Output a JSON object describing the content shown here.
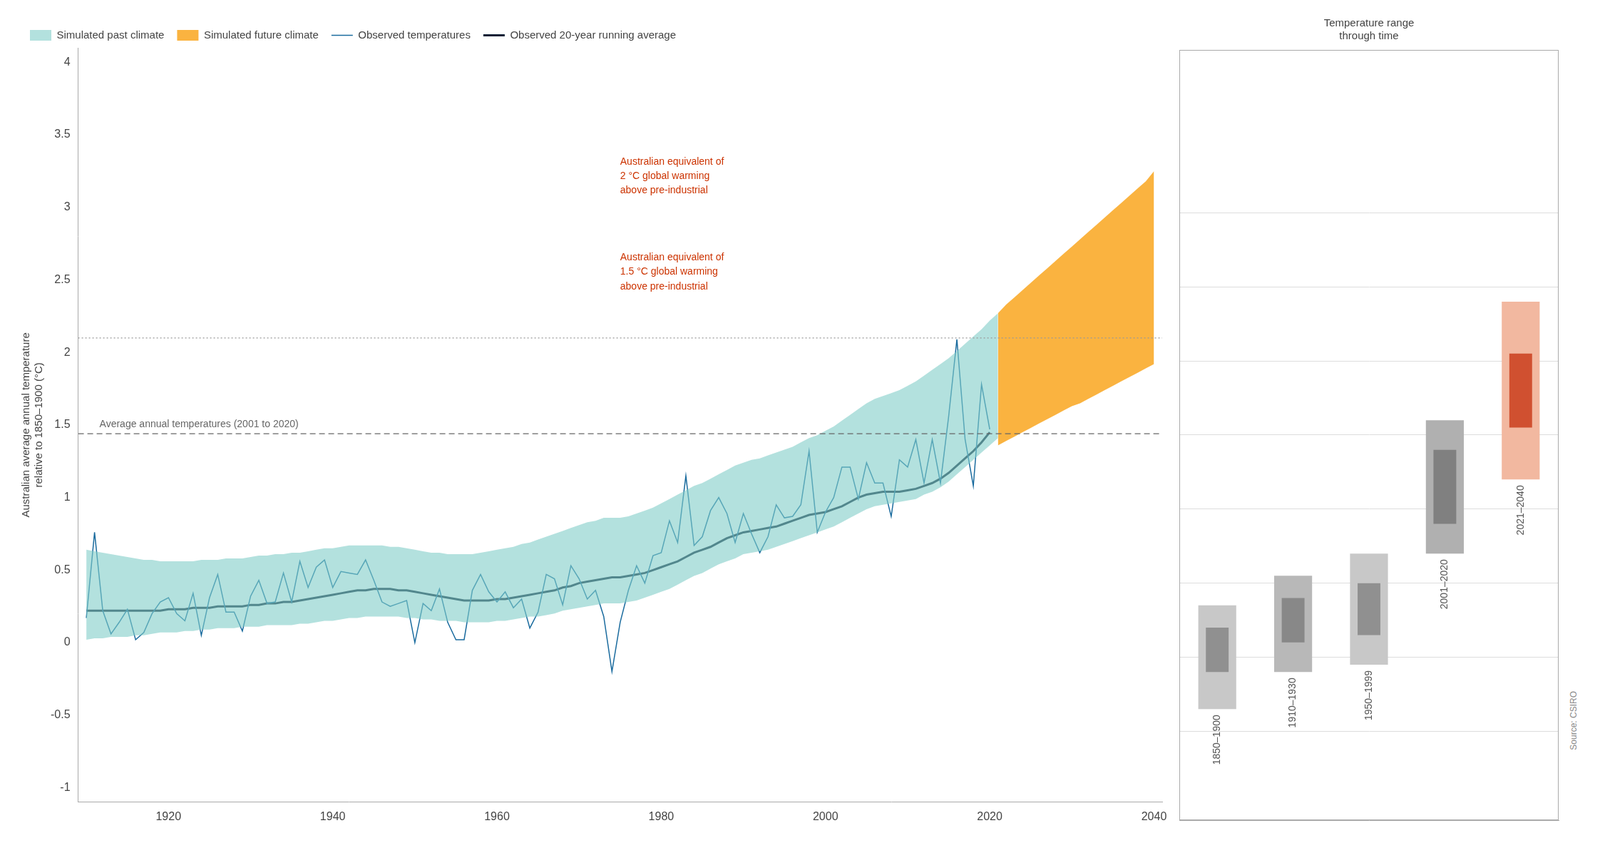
{
  "chart_data": [
    {
      "type": "line",
      "ylabel": "Australian average annual temperature\nrelative to 1850–1900 (°C)",
      "xlim": [
        1909,
        2041
      ],
      "ylim": [
        -1.1,
        4.1
      ],
      "xticks": [
        1920,
        1940,
        1960,
        1980,
        2000,
        2020,
        2040
      ],
      "yticks": [
        -1,
        -0.5,
        0,
        0.5,
        1,
        1.5,
        2,
        2.5,
        3,
        3.5,
        4
      ],
      "grid": false,
      "legend": "upper left",
      "series": [
        {
          "name": "Simulated past climate",
          "type": "area",
          "color": "#80cdc8",
          "x": [
            1910,
            1911,
            1912,
            1913,
            1914,
            1915,
            1916,
            1917,
            1918,
            1919,
            1920,
            1921,
            1922,
            1923,
            1924,
            1925,
            1926,
            1927,
            1928,
            1929,
            1930,
            1931,
            1932,
            1933,
            1934,
            1935,
            1936,
            1937,
            1938,
            1939,
            1940,
            1941,
            1942,
            1943,
            1944,
            1945,
            1946,
            1947,
            1948,
            1949,
            1950,
            1951,
            1952,
            1953,
            1954,
            1955,
            1956,
            1957,
            1958,
            1959,
            1960,
            1961,
            1962,
            1963,
            1964,
            1965,
            1966,
            1967,
            1968,
            1969,
            1970,
            1971,
            1972,
            1973,
            1974,
            1975,
            1976,
            1977,
            1978,
            1979,
            1980,
            1981,
            1982,
            1983,
            1984,
            1985,
            1986,
            1987,
            1988,
            1989,
            1990,
            1991,
            1992,
            1993,
            1994,
            1995,
            1996,
            1997,
            1998,
            1999,
            2000,
            2001,
            2002,
            2003,
            2004,
            2005,
            2006,
            2007,
            2008,
            2009,
            2010,
            2011,
            2012,
            2013,
            2014,
            2015,
            2016,
            2017,
            2018,
            2019,
            2020,
            2021
          ],
          "low": [
            0.02,
            0.03,
            0.03,
            0.04,
            0.04,
            0.04,
            0.05,
            0.05,
            0.06,
            0.07,
            0.07,
            0.07,
            0.08,
            0.08,
            0.09,
            0.09,
            0.1,
            0.1,
            0.1,
            0.11,
            0.11,
            0.11,
            0.12,
            0.12,
            0.12,
            0.12,
            0.13,
            0.13,
            0.14,
            0.15,
            0.15,
            0.16,
            0.17,
            0.17,
            0.18,
            0.18,
            0.18,
            0.18,
            0.18,
            0.17,
            0.17,
            0.16,
            0.16,
            0.15,
            0.15,
            0.15,
            0.14,
            0.14,
            0.14,
            0.14,
            0.15,
            0.15,
            0.16,
            0.17,
            0.18,
            0.18,
            0.19,
            0.2,
            0.22,
            0.23,
            0.24,
            0.25,
            0.26,
            0.27,
            0.27,
            0.27,
            0.28,
            0.29,
            0.31,
            0.33,
            0.35,
            0.37,
            0.4,
            0.43,
            0.46,
            0.48,
            0.51,
            0.54,
            0.56,
            0.58,
            0.61,
            0.62,
            0.63,
            0.64,
            0.66,
            0.68,
            0.7,
            0.72,
            0.74,
            0.76,
            0.78,
            0.8,
            0.83,
            0.86,
            0.89,
            0.92,
            0.94,
            0.95,
            0.96,
            0.97,
            0.98,
            0.99,
            1.02,
            1.04,
            1.07,
            1.11,
            1.16,
            1.21,
            1.26,
            1.31,
            1.36,
            1.41
          ],
          "high": [
            0.64,
            0.63,
            0.62,
            0.61,
            0.6,
            0.59,
            0.58,
            0.57,
            0.57,
            0.56,
            0.56,
            0.56,
            0.56,
            0.56,
            0.57,
            0.57,
            0.57,
            0.58,
            0.58,
            0.58,
            0.59,
            0.6,
            0.6,
            0.61,
            0.61,
            0.62,
            0.62,
            0.63,
            0.64,
            0.65,
            0.65,
            0.66,
            0.67,
            0.67,
            0.67,
            0.67,
            0.67,
            0.66,
            0.66,
            0.65,
            0.64,
            0.63,
            0.62,
            0.62,
            0.61,
            0.61,
            0.61,
            0.61,
            0.62,
            0.63,
            0.64,
            0.65,
            0.66,
            0.68,
            0.69,
            0.71,
            0.73,
            0.75,
            0.77,
            0.79,
            0.81,
            0.83,
            0.84,
            0.86,
            0.86,
            0.86,
            0.87,
            0.89,
            0.91,
            0.93,
            0.96,
            0.99,
            1.02,
            1.05,
            1.08,
            1.1,
            1.13,
            1.16,
            1.19,
            1.22,
            1.24,
            1.26,
            1.27,
            1.29,
            1.31,
            1.33,
            1.35,
            1.38,
            1.41,
            1.43,
            1.46,
            1.49,
            1.53,
            1.57,
            1.61,
            1.65,
            1.68,
            1.7,
            1.72,
            1.74,
            1.77,
            1.8,
            1.84,
            1.88,
            1.92,
            1.96,
            2.01,
            2.06,
            2.11,
            2.16,
            2.22,
            2.27
          ]
        },
        {
          "name": "Simulated future climate",
          "type": "area",
          "color": "#f9a825",
          "x": [
            2021,
            2022,
            2023,
            2024,
            2025,
            2026,
            2027,
            2028,
            2029,
            2030,
            2031,
            2032,
            2033,
            2034,
            2035,
            2036,
            2037,
            2038,
            2039,
            2040
          ],
          "low": [
            1.36,
            1.39,
            1.42,
            1.45,
            1.48,
            1.51,
            1.54,
            1.57,
            1.6,
            1.63,
            1.65,
            1.68,
            1.71,
            1.74,
            1.77,
            1.8,
            1.83,
            1.86,
            1.89,
            1.92
          ],
          "high": [
            2.27,
            2.33,
            2.38,
            2.43,
            2.48,
            2.53,
            2.58,
            2.63,
            2.68,
            2.73,
            2.78,
            2.83,
            2.88,
            2.93,
            2.98,
            3.03,
            3.08,
            3.13,
            3.18,
            3.25
          ]
        },
        {
          "name": "Observed temperatures",
          "type": "line",
          "color": "#1a6b9e",
          "x": [
            1910,
            1911,
            1912,
            1913,
            1914,
            1915,
            1916,
            1917,
            1918,
            1919,
            1920,
            1921,
            1922,
            1923,
            1924,
            1925,
            1926,
            1927,
            1928,
            1929,
            1930,
            1931,
            1932,
            1933,
            1934,
            1935,
            1936,
            1937,
            1938,
            1939,
            1940,
            1941,
            1942,
            1943,
            1944,
            1945,
            1946,
            1947,
            1948,
            1949,
            1950,
            1951,
            1952,
            1953,
            1954,
            1955,
            1956,
            1957,
            1958,
            1959,
            1960,
            1961,
            1962,
            1963,
            1964,
            1965,
            1966,
            1967,
            1968,
            1969,
            1970,
            1971,
            1972,
            1973,
            1974,
            1975,
            1976,
            1977,
            1978,
            1979,
            1980,
            1981,
            1982,
            1983,
            1984,
            1985,
            1986,
            1987,
            1988,
            1989,
            1990,
            1991,
            1992,
            1993,
            1994,
            1995,
            1996,
            1997,
            1998,
            1999,
            2000,
            2001,
            2002,
            2003,
            2004,
            2005,
            2006,
            2007,
            2008,
            2009,
            2010,
            2011,
            2012,
            2013,
            2014,
            2015,
            2016,
            2017,
            2018,
            2019,
            2020
          ],
          "values": [
            0.17,
            0.76,
            0.22,
            0.06,
            0.14,
            0.23,
            0.02,
            0.07,
            0.2,
            0.28,
            0.31,
            0.2,
            0.15,
            0.34,
            0.05,
            0.31,
            0.47,
            0.21,
            0.21,
            0.08,
            0.32,
            0.43,
            0.27,
            0.28,
            0.48,
            0.28,
            0.56,
            0.38,
            0.52,
            0.57,
            0.38,
            0.49,
            0.48,
            0.47,
            0.57,
            0.43,
            0.28,
            0.25,
            0.27,
            0.29,
            0.0,
            0.27,
            0.22,
            0.37,
            0.14,
            0.02,
            0.02,
            0.36,
            0.47,
            0.35,
            0.28,
            0.35,
            0.24,
            0.3,
            0.1,
            0.21,
            0.47,
            0.44,
            0.26,
            0.53,
            0.44,
            0.3,
            0.36,
            0.18,
            -0.2,
            0.14,
            0.36,
            0.53,
            0.41,
            0.6,
            0.62,
            0.84,
            0.69,
            1.15,
            0.67,
            0.73,
            0.91,
            1.0,
            0.89,
            0.69,
            0.89,
            0.75,
            0.62,
            0.73,
            0.95,
            0.86,
            0.87,
            0.95,
            1.32,
            0.76,
            0.9,
            1.0,
            1.21,
            1.21,
            0.99,
            1.24,
            1.1,
            1.1,
            0.87,
            1.26,
            1.21,
            1.4,
            1.1,
            1.4,
            1.1,
            1.56,
            2.09,
            1.4,
            1.08,
            1.78,
            1.47
          ]
        },
        {
          "name": "Observed 20-year running average",
          "type": "line",
          "color": "#0d1f35",
          "x": [
            1910,
            1911,
            1912,
            1913,
            1914,
            1915,
            1916,
            1917,
            1918,
            1919,
            1920,
            1921,
            1922,
            1923,
            1924,
            1925,
            1926,
            1927,
            1928,
            1929,
            1930,
            1931,
            1932,
            1933,
            1934,
            1935,
            1936,
            1937,
            1938,
            1939,
            1940,
            1941,
            1942,
            1943,
            1944,
            1945,
            1946,
            1947,
            1948,
            1949,
            1950,
            1951,
            1952,
            1953,
            1954,
            1955,
            1956,
            1957,
            1958,
            1959,
            1960,
            1961,
            1962,
            1963,
            1964,
            1965,
            1966,
            1967,
            1968,
            1969,
            1970,
            1971,
            1972,
            1973,
            1974,
            1975,
            1976,
            1977,
            1978,
            1979,
            1980,
            1981,
            1982,
            1983,
            1984,
            1985,
            1986,
            1987,
            1988,
            1989,
            1990,
            1991,
            1992,
            1993,
            1994,
            1995,
            1996,
            1997,
            1998,
            1999,
            2000,
            2001,
            2002,
            2003,
            2004,
            2005,
            2006,
            2007,
            2008,
            2009,
            2010,
            2011,
            2012,
            2013,
            2014,
            2015,
            2016,
            2017,
            2018,
            2019,
            2020
          ],
          "values": [
            0.22,
            0.22,
            0.22,
            0.22,
            0.22,
            0.22,
            0.22,
            0.22,
            0.22,
            0.22,
            0.23,
            0.23,
            0.23,
            0.24,
            0.24,
            0.24,
            0.25,
            0.25,
            0.25,
            0.25,
            0.26,
            0.26,
            0.27,
            0.27,
            0.28,
            0.28,
            0.29,
            0.3,
            0.31,
            0.32,
            0.33,
            0.34,
            0.35,
            0.36,
            0.36,
            0.37,
            0.37,
            0.37,
            0.36,
            0.36,
            0.35,
            0.34,
            0.33,
            0.32,
            0.31,
            0.3,
            0.29,
            0.29,
            0.29,
            0.29,
            0.3,
            0.3,
            0.31,
            0.32,
            0.33,
            0.34,
            0.35,
            0.36,
            0.38,
            0.39,
            0.41,
            0.42,
            0.43,
            0.44,
            0.45,
            0.45,
            0.46,
            0.47,
            0.48,
            0.5,
            0.52,
            0.54,
            0.56,
            0.59,
            0.62,
            0.64,
            0.66,
            0.69,
            0.72,
            0.74,
            0.76,
            0.77,
            0.78,
            0.79,
            0.8,
            0.82,
            0.84,
            0.86,
            0.88,
            0.89,
            0.9,
            0.92,
            0.94,
            0.97,
            1.0,
            1.02,
            1.03,
            1.04,
            1.04,
            1.04,
            1.05,
            1.06,
            1.08,
            1.1,
            1.13,
            1.17,
            1.22,
            1.27,
            1.32,
            1.38,
            1.45
          ]
        }
      ],
      "reference_lines": [
        {
          "value": 1.44,
          "label": "Average annual temperatures (2001 to 2020)",
          "color": "#666666",
          "line_style": "dashed"
        },
        {
          "value": 2.1,
          "color": "#999999",
          "line_style": "dotted"
        }
      ],
      "annotations": [
        {
          "x": 1975,
          "y": 2.42,
          "text": "Australian equivalent of\n1.5 °C global warming\nabove pre-industrial",
          "color": "#cc3300"
        },
        {
          "x": 1975,
          "y": 3.08,
          "text": "Australian equivalent of\n2 °C global warming\nabove pre-industrial",
          "color": "#cc3300"
        }
      ]
    },
    {
      "type": "bar",
      "title": "Temperature range\nthrough time",
      "categories": [
        "1850–1900",
        "1910–1930",
        "1950–1999",
        "2001–2020",
        "2021–2040"
      ],
      "ylim": [
        -1.1,
        4.1
      ],
      "yticks": [
        -0.5,
        0,
        0.5,
        1,
        1.5,
        2,
        2.5,
        3
      ],
      "grid": true,
      "tick_labels": false,
      "series": [
        {
          "low": [
            -0.35,
            -0.1,
            -0.05,
            0.7,
            1.2
          ],
          "high": [
            0.35,
            0.55,
            0.7,
            1.6,
            2.4
          ],
          "colors": [
            "#c8c8c8",
            "#b8b8b8",
            "#c8c8c8",
            "#b0b0b0",
            "#f2b8a0"
          ]
        },
        {
          "low": [
            -0.1,
            0.1,
            0.15,
            0.9,
            1.55
          ],
          "high": [
            0.2,
            0.4,
            0.5,
            1.4,
            2.05
          ],
          "colors": [
            "#909090",
            "#888888",
            "#909090",
            "#808080",
            "#d05030"
          ]
        }
      ],
      "source": "Source: CSIRO"
    }
  ]
}
